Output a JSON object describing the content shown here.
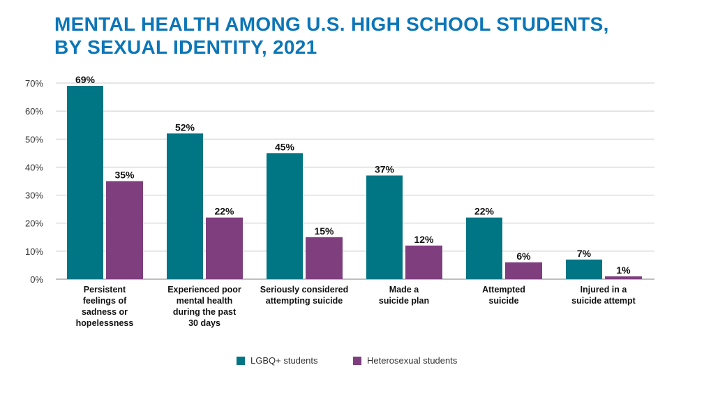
{
  "chart_data": {
    "type": "bar",
    "title_lines": [
      "MENTAL HEALTH AMONG U.S. HIGH SCHOOL STUDENTS,",
      "BY SEXUAL IDENTITY, 2021"
    ],
    "categories": [
      [
        "Persistent",
        "feelings of",
        "sadness or",
        "hopelessness"
      ],
      [
        "Experienced poor",
        "mental health",
        "during the past",
        "30 days"
      ],
      [
        "Seriously considered",
        "attempting suicide"
      ],
      [
        "Made a",
        "suicide plan"
      ],
      [
        "Attempted",
        "suicide"
      ],
      [
        "Injured in a",
        "suicide attempt"
      ]
    ],
    "series": [
      {
        "name": "LGBQ+ students",
        "color": "#007584",
        "values": [
          69,
          52,
          45,
          37,
          22,
          7
        ]
      },
      {
        "name": "Heterosexual students",
        "color": "#7f3f7f",
        "values": [
          35,
          22,
          15,
          12,
          6,
          1
        ]
      }
    ],
    "yticks": [
      "0%",
      "10%",
      "20%",
      "30%",
      "40%",
      "50%",
      "60%",
      "70%"
    ],
    "ylim": [
      0,
      70
    ],
    "grid": true,
    "legend_placement": "bottom",
    "title_color": "#0b76b8"
  }
}
